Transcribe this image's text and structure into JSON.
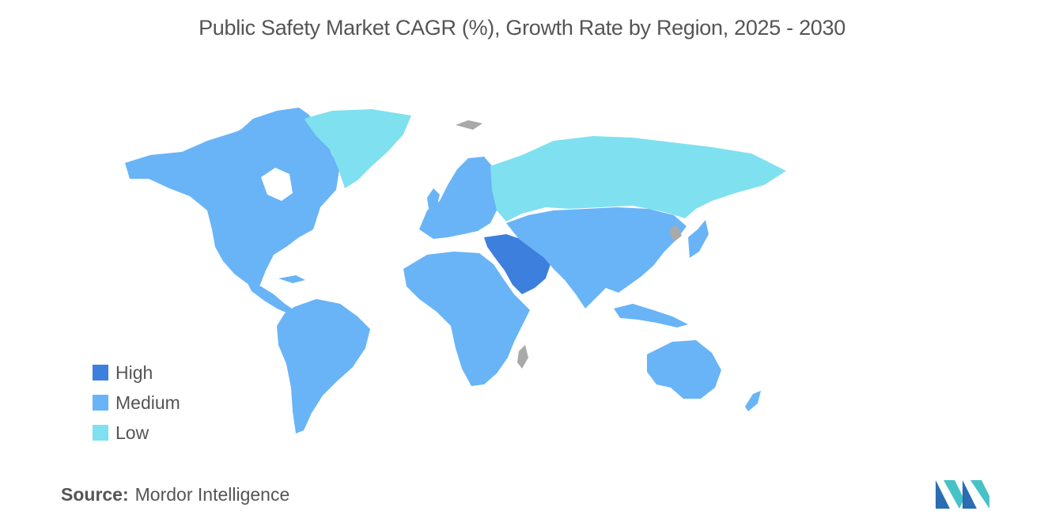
{
  "title": "Public Safety Market CAGR (%), Growth Rate by Region, 2025 - 2030",
  "legend": {
    "items": [
      {
        "label": "High",
        "color": "#3d7fdc"
      },
      {
        "label": "Medium",
        "color": "#68b4f7"
      },
      {
        "label": "Low",
        "color": "#7fe0f0"
      }
    ]
  },
  "map": {
    "no_data_color": "#a9a9a9",
    "regions": [
      {
        "region": "Middle East",
        "category": "High"
      },
      {
        "region": "North America",
        "category": "Medium"
      },
      {
        "region": "South America",
        "category": "Medium"
      },
      {
        "region": "Europe",
        "category": "Medium"
      },
      {
        "region": "Africa",
        "category": "Medium"
      },
      {
        "region": "Asia-Pacific",
        "category": "Medium"
      },
      {
        "region": "Greenland",
        "category": "Low"
      },
      {
        "region": "Russia",
        "category": "Low"
      }
    ]
  },
  "source": {
    "label": "Source:",
    "text": "Mordor Intelligence"
  },
  "brand": {
    "logo_colors": [
      "#2a6db3",
      "#47c2c6"
    ]
  }
}
